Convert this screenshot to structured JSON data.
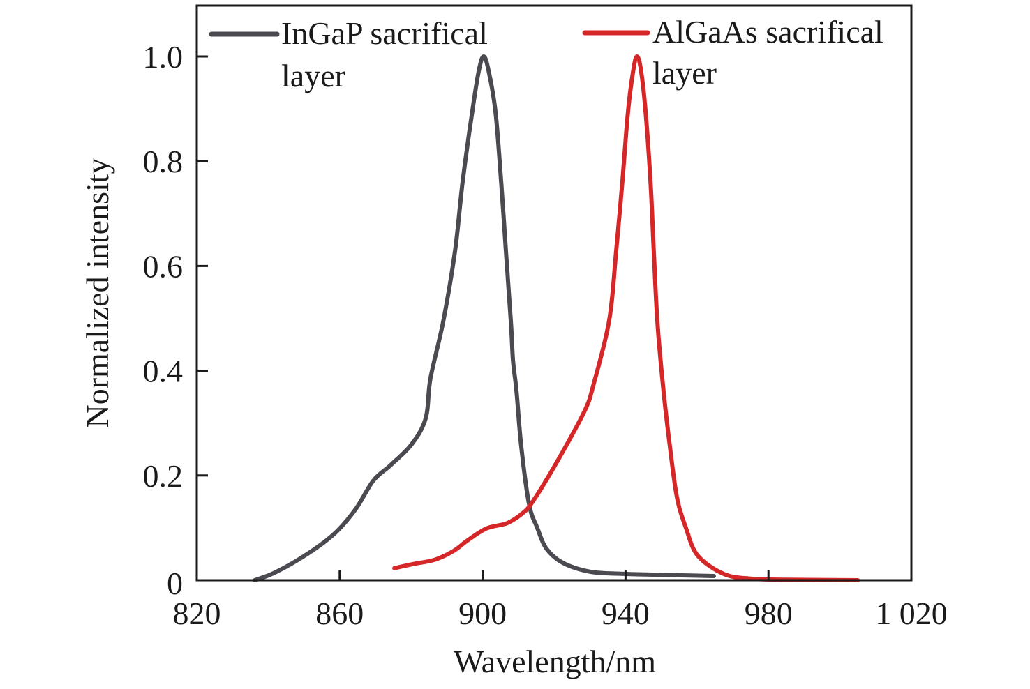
{
  "chart_data": {
    "type": "line",
    "title": "",
    "xlabel": "Wavelength/nm",
    "ylabel": "Normalized intensity",
    "xlim": [
      820,
      1020
    ],
    "ylim": [
      0,
      1.1
    ],
    "grid": false,
    "legend_position": "top",
    "xticks": [
      820,
      860,
      900,
      940,
      980,
      1020
    ],
    "xtick_labels": [
      "820",
      "860",
      "900",
      "940",
      "980",
      "1 020"
    ],
    "yticks": [
      0,
      0.2,
      0.4,
      0.6,
      0.8,
      1.0
    ],
    "ytick_labels": [
      "0",
      "0.2",
      "0.4",
      "0.6",
      "0.8",
      "1.0"
    ],
    "series": [
      {
        "name": "InGaP sacrifical layer",
        "legend_lines": [
          "InGaP sacrifical",
          "layer"
        ],
        "color": "#4a4a50",
        "x": [
          836.2,
          842,
          850.9,
          858.7,
          864.5,
          869.4,
          874.3,
          880.2,
          884.1,
          885.4,
          889.0,
          892.3,
          894.4,
          897.1,
          899.0,
          900.3,
          901.6,
          903.6,
          905.2,
          906.5,
          907.9,
          908.5,
          909.5,
          910.8,
          913.0,
          915.3,
          917.9,
          922.5,
          930.3,
          940.1,
          952,
          964.7
        ],
        "y": [
          0.0,
          0.015,
          0.05,
          0.09,
          0.136,
          0.19,
          0.22,
          0.26,
          0.31,
          0.385,
          0.495,
          0.63,
          0.76,
          0.895,
          0.975,
          1.0,
          0.975,
          0.895,
          0.76,
          0.63,
          0.495,
          0.42,
          0.36,
          0.256,
          0.145,
          0.1,
          0.06,
          0.033,
          0.016,
          0.012,
          0.01,
          0.008
        ]
      },
      {
        "name": "AlGaAs sacrifical layer",
        "legend_lines": [
          "AlGaAs sacrifical",
          "layer"
        ],
        "color": "#d62728",
        "x": [
          875.3,
          880.7,
          886.6,
          891.9,
          895.8,
          901.1,
          906.9,
          911.4,
          913.9,
          918.6,
          925.1,
          929.0,
          930.9,
          935.4,
          937.4,
          939.1,
          940.7,
          942.2,
          943.2,
          944.3,
          945.6,
          947.0,
          947.9,
          948.9,
          950.5,
          952.4,
          954.4,
          956.9,
          960.2,
          967.5,
          975,
          985,
          1005
        ],
        "y": [
          0.023,
          0.031,
          0.039,
          0.056,
          0.076,
          0.099,
          0.109,
          0.129,
          0.149,
          0.2,
          0.278,
          0.33,
          0.37,
          0.495,
          0.63,
          0.76,
          0.895,
          0.975,
          1.0,
          0.975,
          0.895,
          0.76,
          0.63,
          0.495,
          0.37,
          0.256,
          0.158,
          0.1,
          0.047,
          0.012,
          0.003,
          0.001,
          0.0
        ]
      }
    ]
  }
}
